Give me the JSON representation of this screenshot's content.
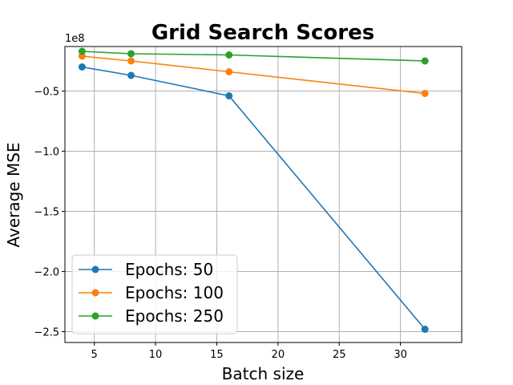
{
  "chart_data": {
    "type": "line",
    "title": "Grid Search Scores",
    "xlabel": "Batch size",
    "ylabel": "Average MSE",
    "y_offset_label": "1e8",
    "x": [
      4,
      8,
      16,
      32
    ],
    "xlim": [
      2.6,
      35.0
    ],
    "ylim": [
      -2.59,
      -0.13
    ],
    "x_ticks": [
      5,
      10,
      15,
      20,
      25,
      30
    ],
    "y_ticks": [
      -0.5,
      -1.0,
      -1.5,
      -2.0,
      -2.5
    ],
    "y_tick_labels": [
      "−0.5",
      "−1.0",
      "−1.5",
      "−2.0",
      "−2.5"
    ],
    "x_tick_labels": [
      "5",
      "10",
      "15",
      "20",
      "25",
      "30"
    ],
    "grid": true,
    "legend_position": "lower-left",
    "series": [
      {
        "name": "Epochs: 50",
        "color": "#1f77b4",
        "values": [
          -0.3,
          -0.37,
          -0.54,
          -2.48
        ]
      },
      {
        "name": "Epochs: 100",
        "color": "#ff7f0e",
        "values": [
          -0.21,
          -0.25,
          -0.34,
          -0.52
        ]
      },
      {
        "name": "Epochs: 250",
        "color": "#2ca02c",
        "values": [
          -0.17,
          -0.19,
          -0.2,
          -0.25
        ]
      }
    ]
  }
}
